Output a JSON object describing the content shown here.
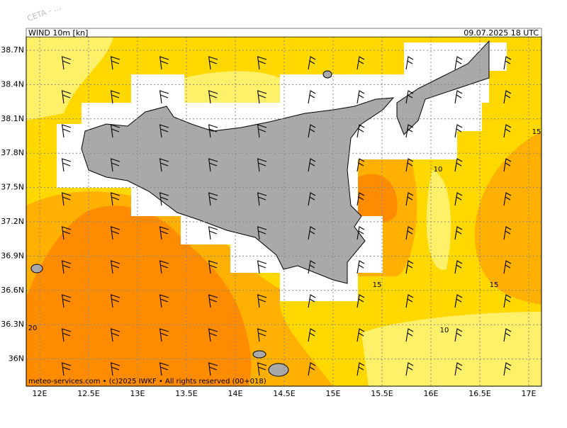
{
  "watermark": "CETA - ...",
  "header": {
    "title": "WIND 10m [kn]",
    "date": "09.07.2025 18 UTC"
  },
  "footer": "meteo-services.com • (c)2025 IWKF • All rights reserved (00+018)",
  "lat_labels": [
    "38.7N",
    "38.4N",
    "38.1N",
    "37.8N",
    "37.5N",
    "37.2N",
    "36.9N",
    "36.6N",
    "36.3N",
    "36N"
  ],
  "lon_labels": [
    "12E",
    "12.5E",
    "13E",
    "13.5E",
    "14E",
    "14.5E",
    "15E",
    "15.5E",
    "16E",
    "16.5E",
    "17E"
  ],
  "contour_labels": [
    "10",
    "15",
    "20",
    "15",
    "15",
    "10"
  ]
}
